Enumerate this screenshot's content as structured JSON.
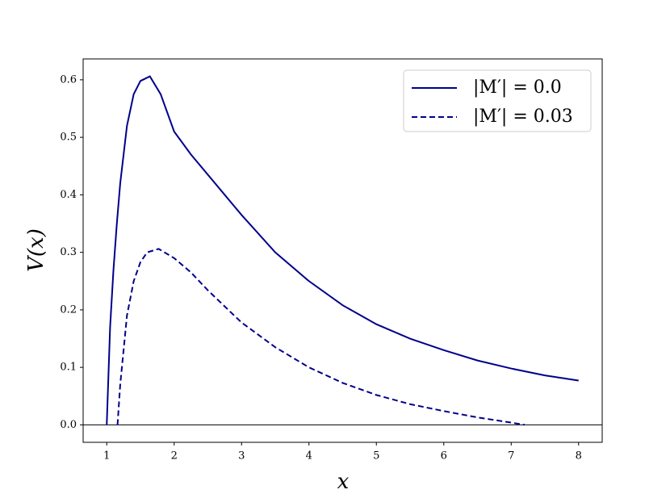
{
  "chart_data": {
    "type": "line",
    "xlabel": "x",
    "ylabel": "V(x)",
    "xlim": [
      0.65,
      8.35
    ],
    "ylim": [
      -0.0303,
      0.6363
    ],
    "xticks": [
      1,
      2,
      3,
      4,
      5,
      6,
      7,
      8
    ],
    "yticks": [
      {
        "value": 0,
        "label": "0.0"
      },
      0.1,
      0.2,
      0.3,
      0.4,
      0.5,
      0.6
    ],
    "hline": 0,
    "legend": "upper right",
    "series": [
      {
        "name": "|M′| = 0.0",
        "color": "#00008b",
        "dashed": false,
        "x": [
          1.0,
          1.05,
          1.1,
          1.15,
          1.2,
          1.3,
          1.4,
          1.5,
          1.64,
          1.8,
          2.0,
          2.25,
          2.5,
          3.0,
          3.5,
          4.0,
          4.5,
          5.0,
          5.5,
          6.0,
          6.5,
          7.0,
          7.5,
          8.0
        ],
        "values": [
          0,
          0.17,
          0.27,
          0.35,
          0.42,
          0.52,
          0.575,
          0.598,
          0.606,
          0.575,
          0.51,
          0.47,
          0.435,
          0.365,
          0.3,
          0.25,
          0.208,
          0.175,
          0.15,
          0.13,
          0.112,
          0.098,
          0.086,
          0.077
        ]
      },
      {
        "name": "|M′| = 0.03",
        "color": "#00008b",
        "dashed": true,
        "x": [
          1.16,
          1.2,
          1.3,
          1.4,
          1.5,
          1.6,
          1.77,
          2.0,
          2.25,
          2.5,
          3.0,
          3.5,
          4.0,
          4.5,
          5.0,
          5.5,
          6.0,
          6.5,
          7.0,
          7.2
        ],
        "values": [
          0,
          0.07,
          0.19,
          0.25,
          0.283,
          0.3,
          0.306,
          0.29,
          0.265,
          0.234,
          0.178,
          0.135,
          0.1,
          0.073,
          0.052,
          0.036,
          0.024,
          0.013,
          0.004,
          0
        ]
      }
    ]
  }
}
